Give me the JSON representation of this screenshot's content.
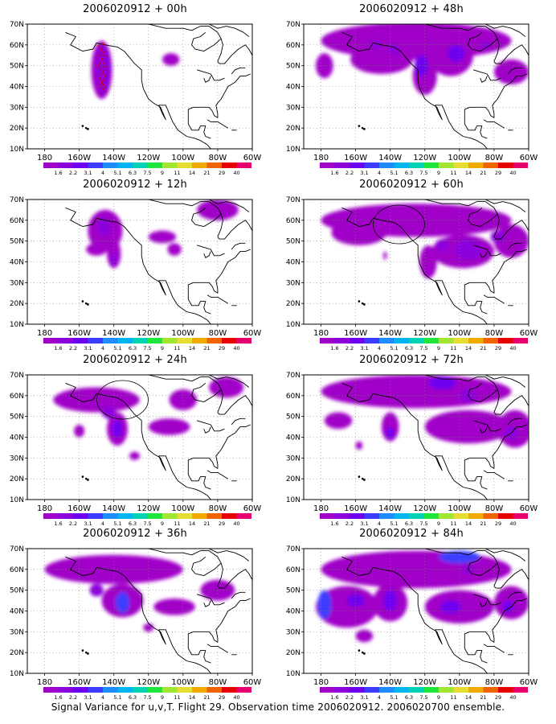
{
  "caption": "Signal Variance for u,v,T. Flight 29. Observation time 2006020912. 2006020700 ensemble.",
  "chart_data": [
    {
      "type": "heatmap",
      "title": "2006020912 + 00h",
      "x_ticks": [
        "180",
        "160W",
        "140W",
        "120W",
        "100W",
        "80W",
        "60W"
      ],
      "y_ticks": [
        "10N",
        "20N",
        "30N",
        "40N",
        "50N",
        "60N",
        "70N"
      ],
      "legend_values": [
        "1.6",
        "2.2",
        "3.1",
        "4",
        "5.1",
        "6.3",
        "7.5",
        "9",
        "11",
        "14",
        "21",
        "29",
        "40"
      ],
      "blobs": [
        {
          "lon": -147,
          "lat": 48,
          "rx": 6,
          "ry": 14,
          "level": 1
        },
        {
          "lon": -146,
          "lat": 48,
          "rx": 4,
          "ry": 12,
          "level": 2
        },
        {
          "lon": -107,
          "lat": 53,
          "rx": 5,
          "ry": 3,
          "level": 1
        }
      ],
      "features": [
        "red-track"
      ]
    },
    {
      "type": "heatmap",
      "title": "2006020912 + 48h",
      "x_ticks": [
        "180",
        "160W",
        "140W",
        "120W",
        "100W",
        "80W",
        "60W"
      ],
      "y_ticks": [
        "10N",
        "20N",
        "30N",
        "40N",
        "50N",
        "60N",
        "70N"
      ],
      "legend_values": [
        "1.6",
        "2.2",
        "3.1",
        "4",
        "5.1",
        "6.3",
        "7.5",
        "9",
        "11",
        "14",
        "21",
        "29",
        "40"
      ],
      "blobs": [
        {
          "lon": -125,
          "lat": 62,
          "rx": 55,
          "ry": 9,
          "level": 1
        },
        {
          "lon": -145,
          "lat": 53,
          "rx": 18,
          "ry": 7,
          "level": 1
        },
        {
          "lon": -120,
          "lat": 45,
          "rx": 7,
          "ry": 9,
          "level": 1
        },
        {
          "lon": -105,
          "lat": 55,
          "rx": 13,
          "ry": 10,
          "level": 1
        },
        {
          "lon": -70,
          "lat": 47,
          "rx": 10,
          "ry": 6,
          "level": 1
        },
        {
          "lon": -178,
          "lat": 50,
          "rx": 5,
          "ry": 6,
          "level": 1
        },
        {
          "lon": -122,
          "lat": 50,
          "rx": 4,
          "ry": 5,
          "level": 3
        },
        {
          "lon": -102,
          "lat": 56,
          "rx": 5,
          "ry": 4,
          "level": 3
        },
        {
          "lon": -138,
          "lat": 58,
          "rx": 3,
          "ry": 3,
          "level": 2
        },
        {
          "lon": -148,
          "lat": 60,
          "rx": 3,
          "ry": 2,
          "level": 2
        },
        {
          "lon": -85,
          "lat": 60,
          "rx": 3,
          "ry": 2,
          "level": 2
        }
      ],
      "features": []
    },
    {
      "type": "heatmap",
      "title": "2006020912 + 12h",
      "x_ticks": [
        "180",
        "160W",
        "140W",
        "120W",
        "100W",
        "80W",
        "60W"
      ],
      "y_ticks": [
        "10N",
        "20N",
        "30N",
        "40N",
        "50N",
        "60N",
        "70N"
      ],
      "legend_values": [
        "1.6",
        "2.2",
        "3.1",
        "4",
        "5.1",
        "6.3",
        "7.5",
        "9",
        "11",
        "14",
        "21",
        "29",
        "40"
      ],
      "blobs": [
        {
          "lon": -145,
          "lat": 55,
          "rx": 10,
          "ry": 10,
          "level": 1
        },
        {
          "lon": -140,
          "lat": 44,
          "rx": 4,
          "ry": 7,
          "level": 1
        },
        {
          "lon": -150,
          "lat": 46,
          "rx": 6,
          "ry": 3,
          "level": 1
        },
        {
          "lon": -112,
          "lat": 52,
          "rx": 8,
          "ry": 3,
          "level": 1
        },
        {
          "lon": -105,
          "lat": 46,
          "rx": 4,
          "ry": 3,
          "level": 1
        },
        {
          "lon": -80,
          "lat": 65,
          "rx": 12,
          "ry": 5,
          "level": 1
        },
        {
          "lon": -146,
          "lat": 57,
          "rx": 4,
          "ry": 4,
          "level": 2
        },
        {
          "lon": -140,
          "lat": 41,
          "rx": 2,
          "ry": 3,
          "level": 2
        }
      ],
      "features": []
    },
    {
      "type": "heatmap",
      "title": "2006020912 + 60h",
      "x_ticks": [
        "180",
        "160W",
        "140W",
        "120W",
        "100W",
        "80W",
        "60W"
      ],
      "y_ticks": [
        "10N",
        "20N",
        "30N",
        "40N",
        "50N",
        "60N",
        "70N"
      ],
      "legend_values": [
        "1.6",
        "2.2",
        "3.1",
        "4",
        "5.1",
        "6.3",
        "7.5",
        "9",
        "11",
        "14",
        "21",
        "29",
        "40"
      ],
      "blobs": [
        {
          "lon": -125,
          "lat": 60,
          "rx": 55,
          "ry": 8,
          "level": 1
        },
        {
          "lon": -158,
          "lat": 54,
          "rx": 16,
          "ry": 6,
          "level": 1
        },
        {
          "lon": -98,
          "lat": 45,
          "rx": 18,
          "ry": 8,
          "level": 1
        },
        {
          "lon": -118,
          "lat": 40,
          "rx": 5,
          "ry": 8,
          "level": 1
        },
        {
          "lon": -70,
          "lat": 50,
          "rx": 10,
          "ry": 8,
          "level": 1
        },
        {
          "lon": -143,
          "lat": 43,
          "rx": 1,
          "ry": 2,
          "level": 1
        },
        {
          "lon": -95,
          "lat": 46,
          "rx": 8,
          "ry": 5,
          "level": 2
        },
        {
          "lon": -78,
          "lat": 52,
          "rx": 4,
          "ry": 3,
          "level": 2
        },
        {
          "lon": -110,
          "lat": 48,
          "rx": 4,
          "ry": 3,
          "level": 2
        }
      ],
      "features": [
        "circle"
      ]
    },
    {
      "type": "heatmap",
      "title": "2006020912 + 24h",
      "x_ticks": [
        "180",
        "160W",
        "140W",
        "120W",
        "100W",
        "80W",
        "60W"
      ],
      "y_ticks": [
        "10N",
        "20N",
        "30N",
        "40N",
        "50N",
        "60N",
        "70N"
      ],
      "legend_values": [
        "1.6",
        "2.2",
        "3.1",
        "4",
        "5.1",
        "6.3",
        "7.5",
        "9",
        "11",
        "14",
        "21",
        "29",
        "40"
      ],
      "blobs": [
        {
          "lon": -150,
          "lat": 58,
          "rx": 25,
          "ry": 6,
          "level": 1
        },
        {
          "lon": -138,
          "lat": 44,
          "rx": 6,
          "ry": 8,
          "level": 1
        },
        {
          "lon": -108,
          "lat": 45,
          "rx": 12,
          "ry": 4,
          "level": 1
        },
        {
          "lon": -100,
          "lat": 58,
          "rx": 8,
          "ry": 5,
          "level": 1
        },
        {
          "lon": -75,
          "lat": 64,
          "rx": 10,
          "ry": 5,
          "level": 1
        },
        {
          "lon": -160,
          "lat": 43,
          "rx": 3,
          "ry": 3,
          "level": 1
        },
        {
          "lon": -128,
          "lat": 31,
          "rx": 3,
          "ry": 2,
          "level": 1
        },
        {
          "lon": -138,
          "lat": 44,
          "rx": 3,
          "ry": 4,
          "level": 3
        },
        {
          "lon": -143,
          "lat": 52,
          "rx": 4,
          "ry": 3,
          "level": 2
        }
      ],
      "features": [
        "circle"
      ]
    },
    {
      "type": "heatmap",
      "title": "2006020912 + 72h",
      "x_ticks": [
        "180",
        "160W",
        "140W",
        "120W",
        "100W",
        "80W",
        "60W"
      ],
      "y_ticks": [
        "10N",
        "20N",
        "30N",
        "40N",
        "50N",
        "60N",
        "70N"
      ],
      "legend_values": [
        "1.6",
        "2.2",
        "3.1",
        "4",
        "5.1",
        "6.3",
        "7.5",
        "9",
        "11",
        "14",
        "21",
        "29",
        "40"
      ],
      "blobs": [
        {
          "lon": -125,
          "lat": 62,
          "rx": 55,
          "ry": 8,
          "level": 1
        },
        {
          "lon": -140,
          "lat": 45,
          "rx": 5,
          "ry": 7,
          "level": 1
        },
        {
          "lon": -95,
          "lat": 45,
          "rx": 25,
          "ry": 8,
          "level": 1
        },
        {
          "lon": -68,
          "lat": 44,
          "rx": 10,
          "ry": 9,
          "level": 1
        },
        {
          "lon": -170,
          "lat": 48,
          "rx": 8,
          "ry": 4,
          "level": 1
        },
        {
          "lon": -158,
          "lat": 36,
          "rx": 2,
          "ry": 2,
          "level": 1
        },
        {
          "lon": -140,
          "lat": 42,
          "rx": 2,
          "ry": 3,
          "level": 3
        },
        {
          "lon": -110,
          "lat": 66,
          "rx": 8,
          "ry": 3,
          "level": 3
        },
        {
          "lon": -95,
          "lat": 60,
          "rx": 5,
          "ry": 3,
          "level": 2
        },
        {
          "lon": -70,
          "lat": 42,
          "rx": 4,
          "ry": 3,
          "level": 2
        }
      ],
      "features": []
    },
    {
      "type": "heatmap",
      "title": "2006020912 + 36h",
      "x_ticks": [
        "180",
        "160W",
        "140W",
        "120W",
        "100W",
        "80W",
        "60W"
      ],
      "y_ticks": [
        "10N",
        "20N",
        "30N",
        "40N",
        "50N",
        "60N",
        "70N"
      ],
      "legend_values": [
        "1.6",
        "2.2",
        "3.1",
        "4",
        "5.1",
        "6.3",
        "7.5",
        "9",
        "11",
        "14",
        "21",
        "29",
        "40"
      ],
      "blobs": [
        {
          "lon": -140,
          "lat": 60,
          "rx": 40,
          "ry": 7,
          "level": 1
        },
        {
          "lon": -135,
          "lat": 45,
          "rx": 12,
          "ry": 8,
          "level": 1
        },
        {
          "lon": -105,
          "lat": 42,
          "rx": 12,
          "ry": 4,
          "level": 1
        },
        {
          "lon": -80,
          "lat": 50,
          "rx": 10,
          "ry": 5,
          "level": 1
        },
        {
          "lon": -120,
          "lat": 32,
          "rx": 3,
          "ry": 2,
          "level": 1
        },
        {
          "lon": -135,
          "lat": 44,
          "rx": 4,
          "ry": 5,
          "level": 4
        },
        {
          "lon": -150,
          "lat": 50,
          "rx": 4,
          "ry": 3,
          "level": 2
        }
      ],
      "features": []
    },
    {
      "type": "heatmap",
      "title": "2006020912 + 84h",
      "x_ticks": [
        "180",
        "160W",
        "140W",
        "120W",
        "100W",
        "80W",
        "60W"
      ],
      "y_ticks": [
        "10N",
        "20N",
        "30N",
        "40N",
        "50N",
        "60N",
        "70N"
      ],
      "legend_values": [
        "1.6",
        "2.2",
        "3.1",
        "4",
        "5.1",
        "6.3",
        "7.5",
        "9",
        "11",
        "14",
        "21",
        "29",
        "40"
      ],
      "blobs": [
        {
          "lon": -125,
          "lat": 60,
          "rx": 55,
          "ry": 9,
          "level": 1
        },
        {
          "lon": -165,
          "lat": 42,
          "rx": 18,
          "ry": 10,
          "level": 1
        },
        {
          "lon": -140,
          "lat": 44,
          "rx": 10,
          "ry": 9,
          "level": 1
        },
        {
          "lon": -100,
          "lat": 42,
          "rx": 20,
          "ry": 8,
          "level": 1
        },
        {
          "lon": -70,
          "lat": 44,
          "rx": 10,
          "ry": 8,
          "level": 1
        },
        {
          "lon": -155,
          "lat": 28,
          "rx": 5,
          "ry": 3,
          "level": 1
        },
        {
          "lon": -178,
          "lat": 43,
          "rx": 4,
          "ry": 7,
          "level": 4
        },
        {
          "lon": -160,
          "lat": 45,
          "rx": 5,
          "ry": 3,
          "level": 3
        },
        {
          "lon": -140,
          "lat": 45,
          "rx": 4,
          "ry": 5,
          "level": 3
        },
        {
          "lon": -100,
          "lat": 66,
          "rx": 12,
          "ry": 3,
          "level": 4
        },
        {
          "lon": -105,
          "lat": 42,
          "rx": 6,
          "ry": 3,
          "level": 3
        },
        {
          "lon": -72,
          "lat": 42,
          "rx": 3,
          "ry": 3,
          "level": 3
        },
        {
          "lon": -95,
          "lat": 60,
          "rx": 4,
          "ry": 2,
          "level": 2
        }
      ],
      "features": []
    }
  ],
  "palette": [
    "#a000c8",
    "#8c00dc",
    "#6e00f0",
    "#3c3cff",
    "#1e8cff",
    "#00b4f0",
    "#00d2b4",
    "#1ee63c",
    "#a0e632",
    "#e6dc32",
    "#f0aa00",
    "#f06400",
    "#e60000",
    "#e6006e"
  ]
}
